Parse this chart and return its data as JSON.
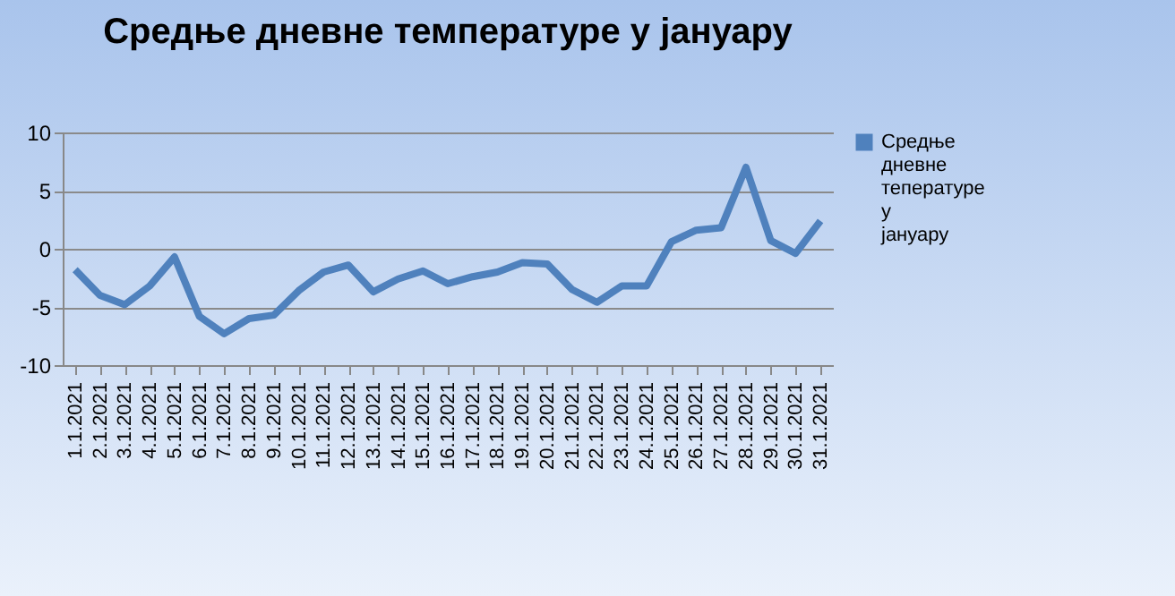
{
  "chart_data": {
    "type": "line",
    "title": "Средње дневне температуре у јануару",
    "categories": [
      "1.1.2021",
      "2.1.2021",
      "3.1.2021",
      "4.1.2021",
      "5.1.2021",
      "6.1.2021",
      "7.1.2021",
      "8.1.2021",
      "9.1.2021",
      "10.1.2021",
      "11.1.2021",
      "12.1.2021",
      "13.1.2021",
      "14.1.2021",
      "15.1.2021",
      "16.1.2021",
      "17.1.2021",
      "18.1.2021",
      "19.1.2021",
      "20.1.2021",
      "21.1.2021",
      "22.1.2021",
      "23.1.2021",
      "24.1.2021",
      "25.1.2021",
      "26.1.2021",
      "27.1.2021",
      "28.1.2021",
      "29.1.2021",
      "30.1.2021",
      "31.1.2021"
    ],
    "series": [
      {
        "name": "Средње дневне тепературе у јануару",
        "color": "#4f81bd",
        "values": [
          -1.8,
          -4.0,
          -4.8,
          -3.2,
          -0.7,
          -5.8,
          -7.3,
          -6.0,
          -5.7,
          -3.6,
          -2.0,
          -1.4,
          -3.7,
          -2.6,
          -1.9,
          -3.0,
          -2.4,
          -2.0,
          -1.2,
          -1.3,
          -3.5,
          -4.6,
          -3.2,
          -3.2,
          0.6,
          1.6,
          1.8,
          7.0,
          0.7,
          -0.4,
          2.4
        ]
      }
    ],
    "ylim": [
      -10,
      10
    ],
    "yticks": [
      -10,
      -5,
      0,
      5,
      10
    ],
    "grid": "y",
    "legend": "right",
    "marker": "none",
    "line_style": "solid"
  }
}
